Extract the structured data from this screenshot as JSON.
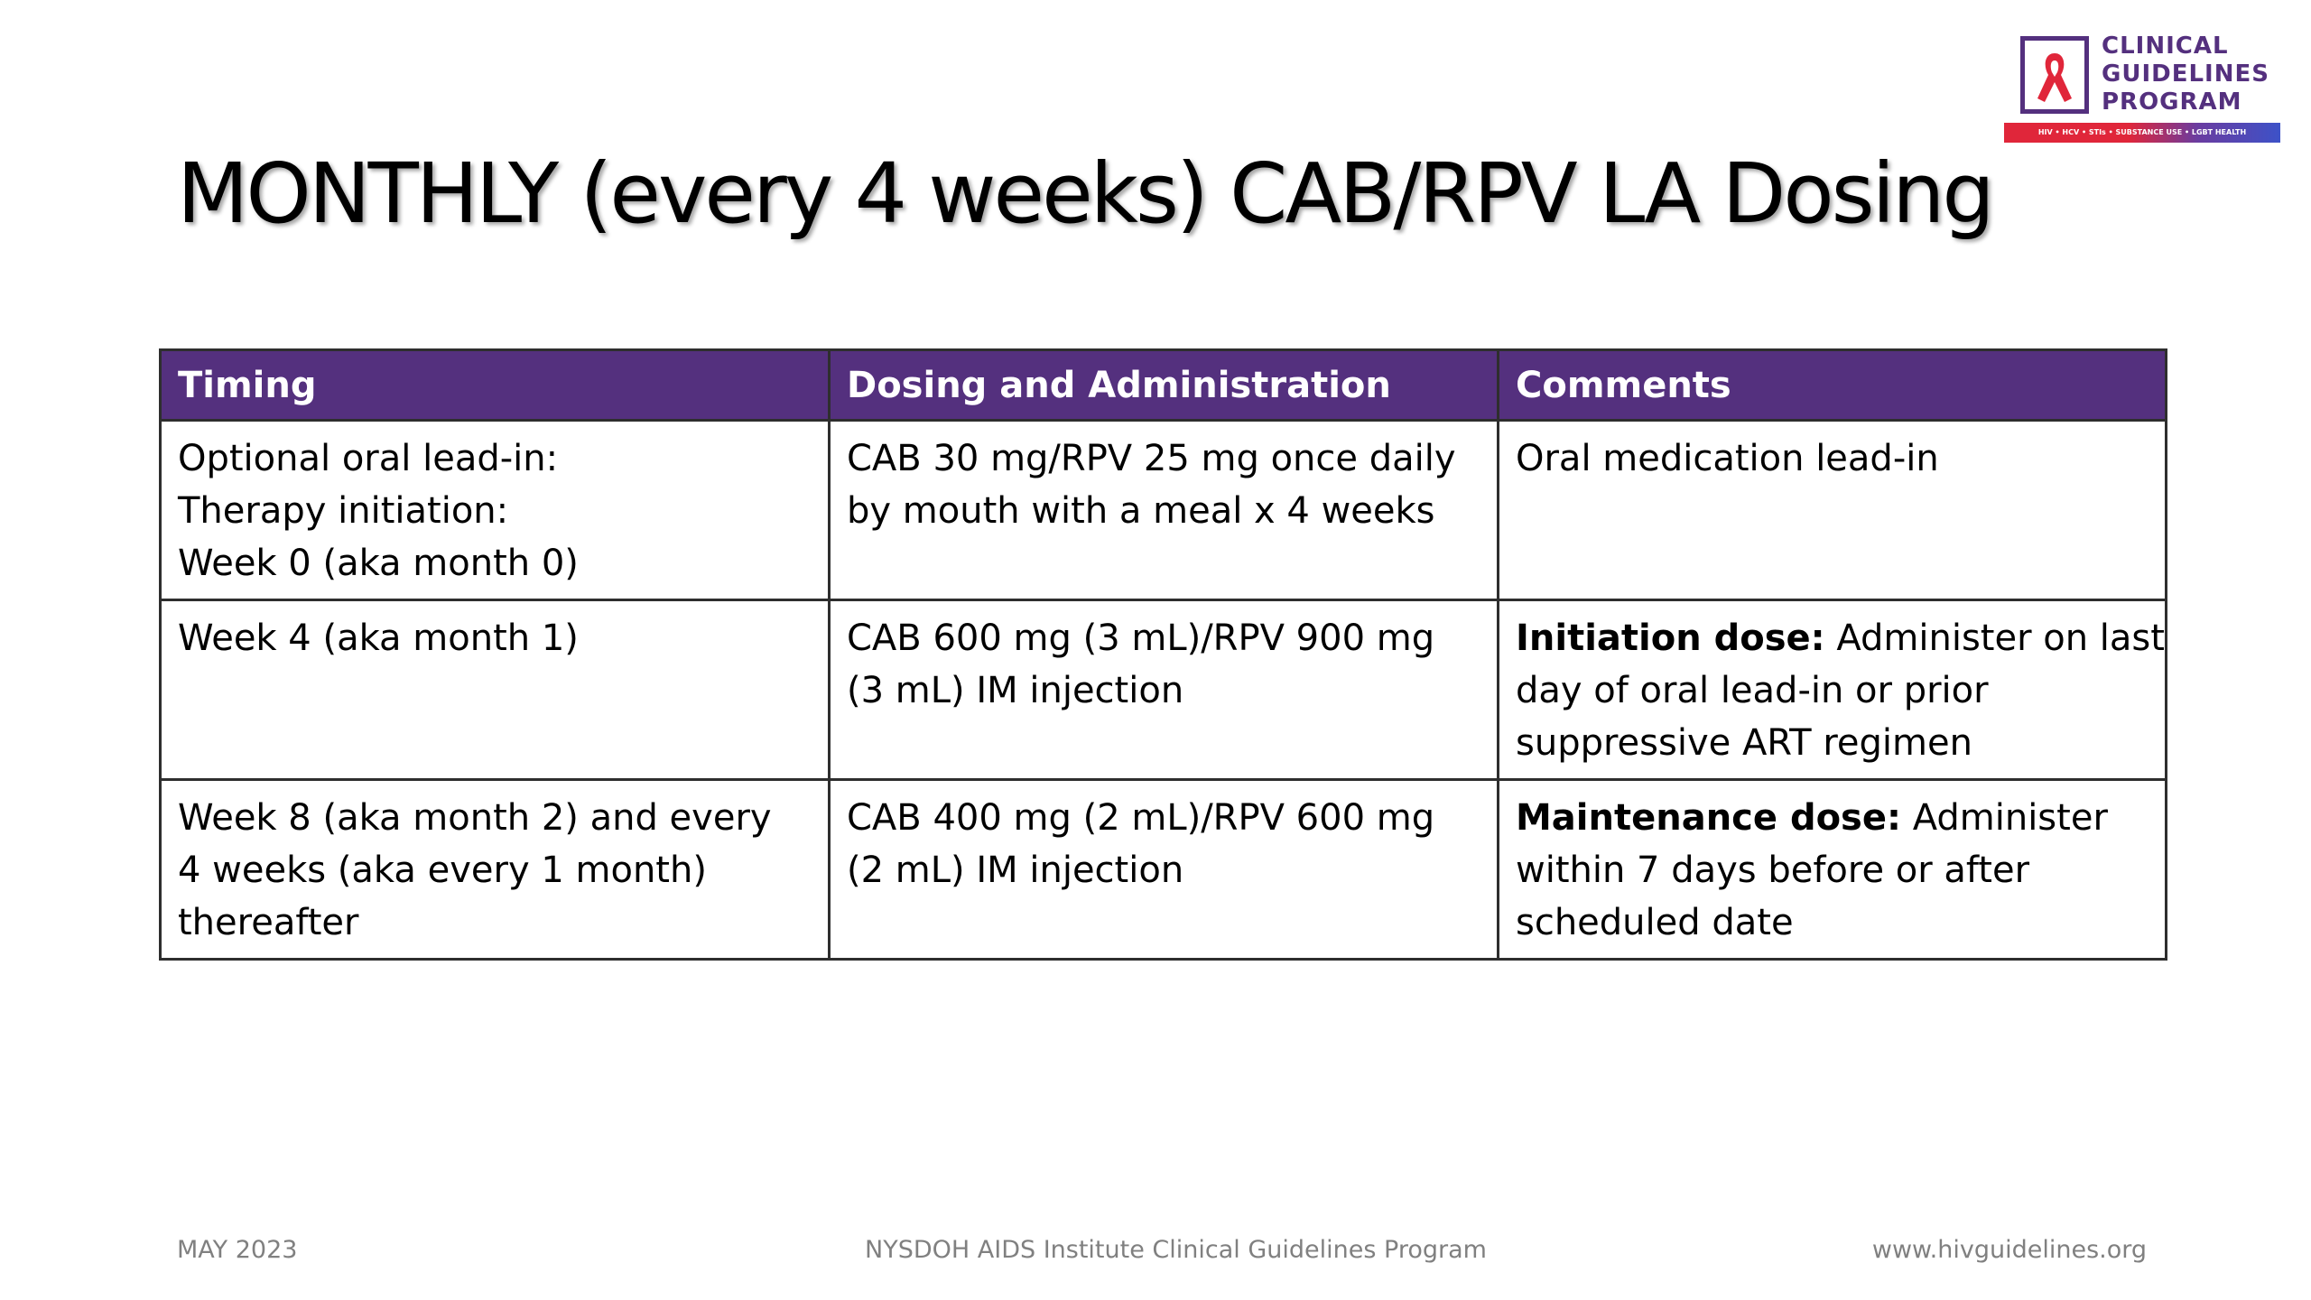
{
  "logo": {
    "line1": "CLINICAL",
    "line2": "GUIDELINES",
    "line3": "PROGRAM",
    "tagline": "HIV • HCV • STIs • SUBSTANCE USE • LGBT HEALTH",
    "ribbon_icon": "ribbon-icon",
    "colors": {
      "purple": "#54307e",
      "red": "#e0263a",
      "blue": "#3d52c8"
    }
  },
  "title": "MONTHLY (every 4 weeks) CAB/RPV LA Dosing",
  "table": {
    "header_color": "#54307e",
    "headers": [
      "Timing",
      "Dosing and Administration",
      "Comments"
    ],
    "rows": [
      {
        "timing": [
          "Optional oral lead-in:",
          "Therapy initiation:",
          "Week 0 (aka month 0)"
        ],
        "dosing": [
          "CAB 30 mg/RPV 25 mg once daily",
          "by mouth with a meal x 4 weeks"
        ],
        "comment_bold": "",
        "comment": [
          "Oral medication lead-in"
        ]
      },
      {
        "timing": [
          "Week 4 (aka month 1)"
        ],
        "dosing": [
          "CAB 600 mg (3 mL)/RPV 900 mg",
          "(3 mL) IM injection"
        ],
        "comment_bold": "Initiation dose:",
        "comment": [
          " Administer on last",
          "day of oral lead-in or prior",
          "suppressive ART regimen"
        ]
      },
      {
        "timing": [
          "Week 8 (aka month 2) and every",
          "4 weeks (aka every 1 month)",
          "thereafter"
        ],
        "dosing": [
          "CAB 400 mg (2 mL)/RPV 600 mg",
          "(2 mL) IM injection"
        ],
        "comment_bold": "Maintenance dose:",
        "comment": [
          " Administer",
          "within 7 days before or after",
          "scheduled date"
        ]
      }
    ]
  },
  "footer": {
    "date": "MAY 2023",
    "center": "NYSDOH AIDS Institute Clinical Guidelines Program",
    "url": "www.hivguidelines.org"
  }
}
